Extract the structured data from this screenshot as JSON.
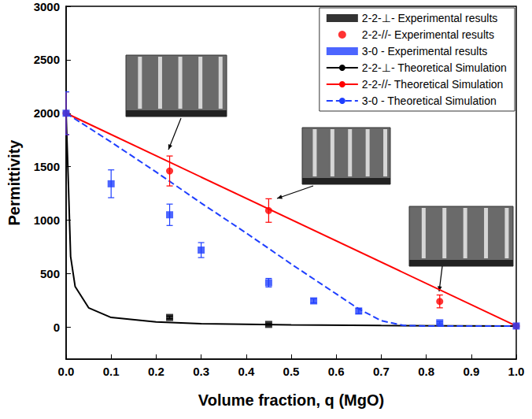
{
  "chart_data": {
    "type": "scatter",
    "xlabel": "Volume fraction, q (MgO)",
    "ylabel": "Permittivity",
    "xlim": [
      0,
      1
    ],
    "ylim": [
      -300,
      3000
    ],
    "xticks": [
      {
        "value": 0,
        "label": "0.0"
      },
      {
        "value": 0.1,
        "label": "0.1"
      },
      {
        "value": 0.2,
        "label": "0.2"
      },
      {
        "value": 0.3,
        "label": "0.3"
      },
      {
        "value": 0.4,
        "label": "0.4"
      },
      {
        "value": 0.5,
        "label": "0.5"
      },
      {
        "value": 0.6,
        "label": "0.6"
      },
      {
        "value": 0.7,
        "label": "0.7"
      },
      {
        "value": 0.8,
        "label": "0.8"
      },
      {
        "value": 0.9,
        "label": "0.9"
      },
      {
        "value": 1,
        "label": "1.0"
      }
    ],
    "yticks": [
      0,
      500,
      1000,
      1500,
      2000,
      2500,
      3000
    ],
    "grid": false,
    "legend": "top-right",
    "series": [
      {
        "name": "2-2-⊥- Experimental results",
        "type": "scatter",
        "color": "#000000",
        "marker": "square",
        "x": [
          0.23,
          0.45
        ],
        "values": [
          90,
          25
        ],
        "errors": [
          12,
          6
        ]
      },
      {
        "name": "2-2-//- Experimental results",
        "type": "scatter",
        "color": "#ff0000",
        "marker": "circle",
        "x": [
          0,
          0.23,
          0.45,
          0.83,
          1
        ],
        "values": [
          2000,
          1460,
          1090,
          240,
          10
        ],
        "errors": [
          200,
          140,
          110,
          60,
          5
        ]
      },
      {
        "name": "3-0 - Experimental results",
        "type": "scatter",
        "color": "#1f3fff",
        "marker": "square",
        "x": [
          0,
          0.1,
          0.23,
          0.3,
          0.45,
          0.55,
          0.65,
          0.83,
          1
        ],
        "values": [
          2000,
          1340,
          1050,
          720,
          415,
          245,
          150,
          40,
          10
        ],
        "errors": [
          200,
          130,
          100,
          70,
          40,
          20,
          25,
          10,
          5
        ]
      },
      {
        "name": "2-2-⊥- Theoretical Simulation",
        "type": "line",
        "color": "#000000",
        "line_style": "solid",
        "x": [
          0,
          0.005,
          0.01,
          0.02,
          0.05,
          0.1,
          0.2,
          0.3,
          0.5,
          0.7,
          1
        ],
        "values": [
          2000,
          1350,
          660,
          380,
          180,
          90,
          48,
          32,
          20,
          14,
          10
        ]
      },
      {
        "name": "2-2-//- Theoretical Simulation",
        "type": "line",
        "color": "#ff0000",
        "line_style": "solid",
        "x": [
          0,
          1
        ],
        "values": [
          2000,
          10
        ]
      },
      {
        "name": "3-0 - Theoretical Simulation",
        "type": "line",
        "color": "#1f3fff",
        "line_style": "dashed",
        "x": [
          0,
          0.1,
          0.2,
          0.3,
          0.4,
          0.5,
          0.6,
          0.65,
          0.7,
          0.75,
          0.8,
          1
        ],
        "values": [
          2000,
          1730,
          1450,
          1160,
          880,
          590,
          310,
          170,
          60,
          15,
          10,
          10
        ]
      }
    ]
  }
}
